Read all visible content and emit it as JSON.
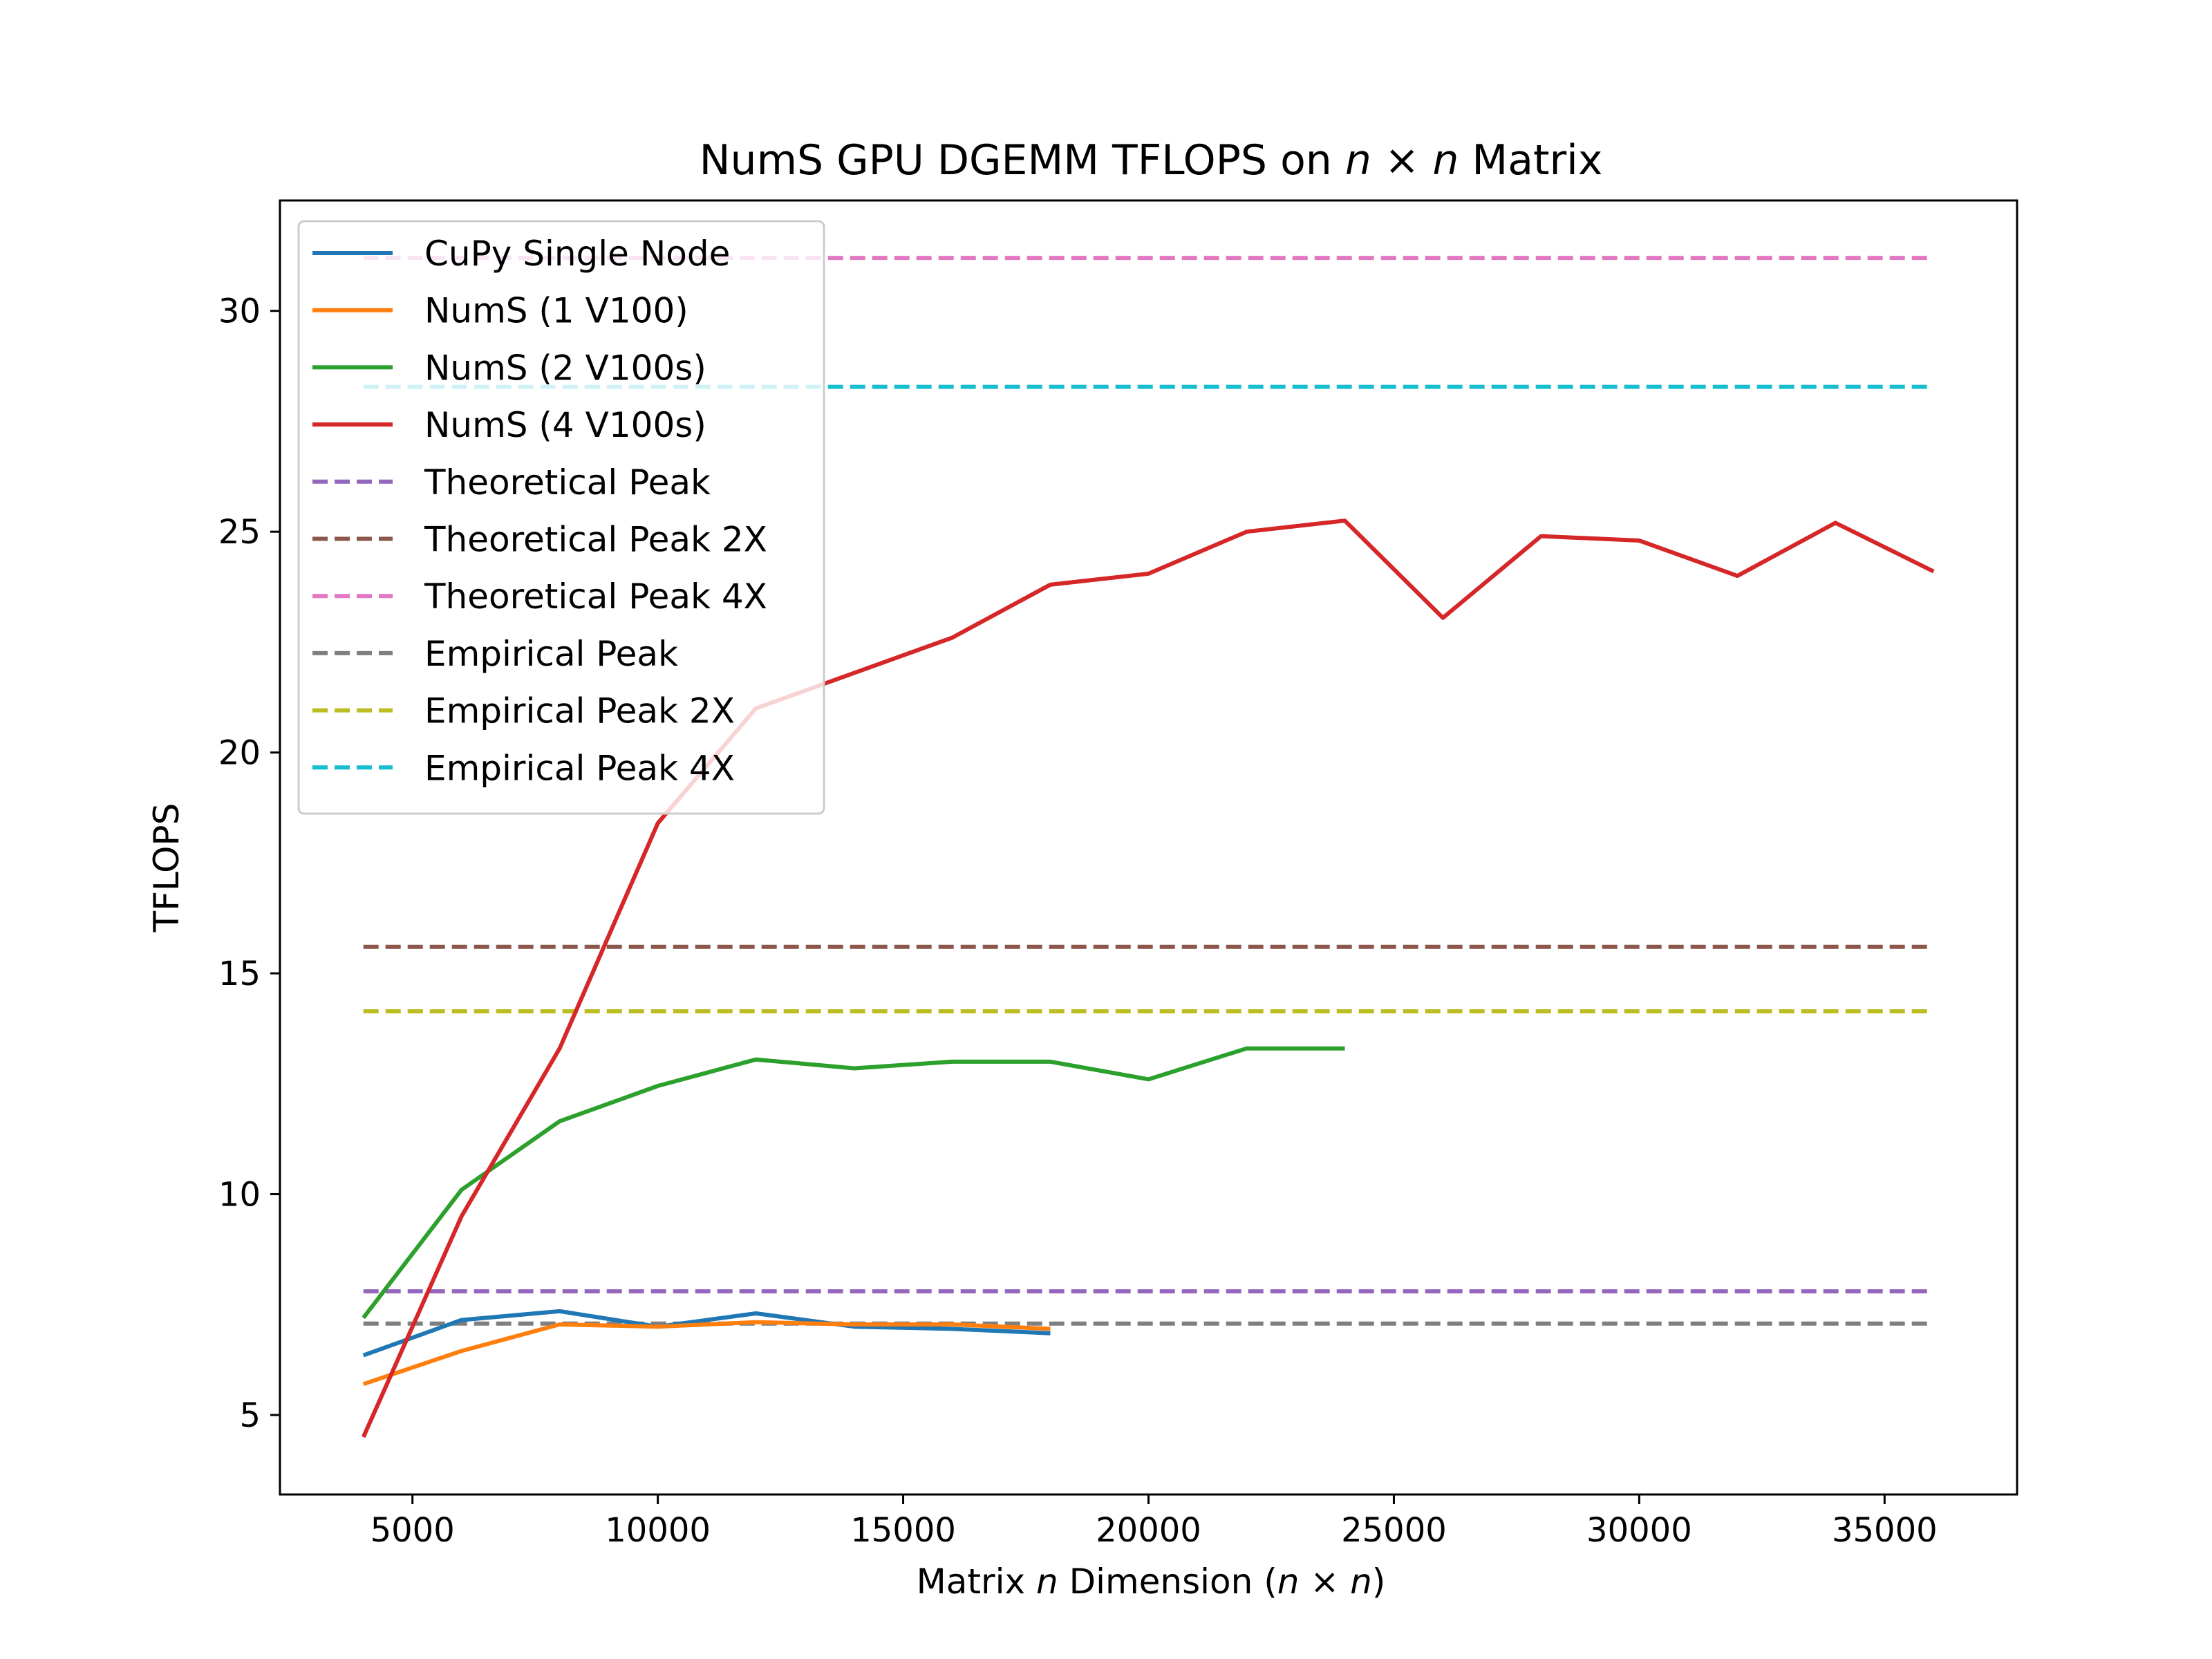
{
  "chart_data": {
    "type": "line",
    "title": "NumS GPU DGEMM TFLOPS on n × n Matrix",
    "xlabel": "Matrix n Dimension (n × n)",
    "ylabel": "TFLOPS",
    "xlim": [
      2300,
      37700
    ],
    "ylim": [
      3.2,
      32.5
    ],
    "xticks": [
      5000,
      10000,
      15000,
      20000,
      25000,
      30000,
      35000
    ],
    "yticks": [
      5,
      10,
      15,
      20,
      25,
      30
    ],
    "grid": false,
    "legend_position": "top-left",
    "series": [
      {
        "name": "CuPy Single Node",
        "color": "#1f77b4",
        "style": "solid",
        "x": [
          4000,
          6000,
          8000,
          10000,
          12000,
          14000,
          16000,
          18000
        ],
        "y": [
          6.35,
          7.15,
          7.35,
          7.0,
          7.3,
          7.0,
          6.95,
          6.85
        ]
      },
      {
        "name": "NumS (1 V100)",
        "color": "#ff7f0e",
        "style": "solid",
        "x": [
          4000,
          6000,
          8000,
          10000,
          12000,
          14000,
          16000,
          18000
        ],
        "y": [
          5.7,
          6.45,
          7.05,
          7.0,
          7.1,
          7.05,
          7.05,
          6.95
        ]
      },
      {
        "name": "NumS (2 V100s)",
        "color": "#2ca02c",
        "style": "solid",
        "x": [
          4000,
          6000,
          8000,
          10000,
          12000,
          14000,
          16000,
          18000,
          20000,
          22000,
          24000
        ],
        "y": [
          7.2,
          10.1,
          11.65,
          12.45,
          13.05,
          12.85,
          13.0,
          13.0,
          12.6,
          13.3,
          13.3
        ]
      },
      {
        "name": "NumS (4 V100s)",
        "color": "#d62728",
        "style": "solid",
        "x": [
          4000,
          6000,
          8000,
          10000,
          12000,
          14000,
          16000,
          18000,
          20000,
          22000,
          24000,
          26000,
          28000,
          30000,
          32000,
          34000,
          36000
        ],
        "y": [
          4.5,
          9.5,
          13.3,
          18.4,
          21.0,
          21.8,
          22.6,
          23.8,
          24.05,
          25.0,
          25.25,
          23.05,
          24.9,
          24.8,
          24.0,
          25.2,
          24.1
        ]
      },
      {
        "name": "Theoretical Peak",
        "color": "#9467bd",
        "style": "dashed",
        "x": [
          4000,
          36000
        ],
        "y": [
          7.8,
          7.8
        ]
      },
      {
        "name": "Theoretical Peak 2X",
        "color": "#8c564b",
        "style": "dashed",
        "x": [
          4000,
          36000
        ],
        "y": [
          15.6,
          15.6
        ]
      },
      {
        "name": "Theoretical Peak 4X",
        "color": "#e377c2",
        "style": "dashed",
        "x": [
          4000,
          36000
        ],
        "y": [
          31.2,
          31.2
        ]
      },
      {
        "name": "Empirical Peak",
        "color": "#7f7f7f",
        "style": "dashed",
        "x": [
          4000,
          36000
        ],
        "y": [
          7.07,
          7.07
        ]
      },
      {
        "name": "Empirical Peak 2X",
        "color": "#bcbd22",
        "style": "dashed",
        "x": [
          4000,
          36000
        ],
        "y": [
          14.14,
          14.14
        ]
      },
      {
        "name": "Empirical Peak 4X",
        "color": "#17becf",
        "style": "dashed",
        "x": [
          4000,
          36000
        ],
        "y": [
          28.28,
          28.28
        ]
      }
    ]
  }
}
